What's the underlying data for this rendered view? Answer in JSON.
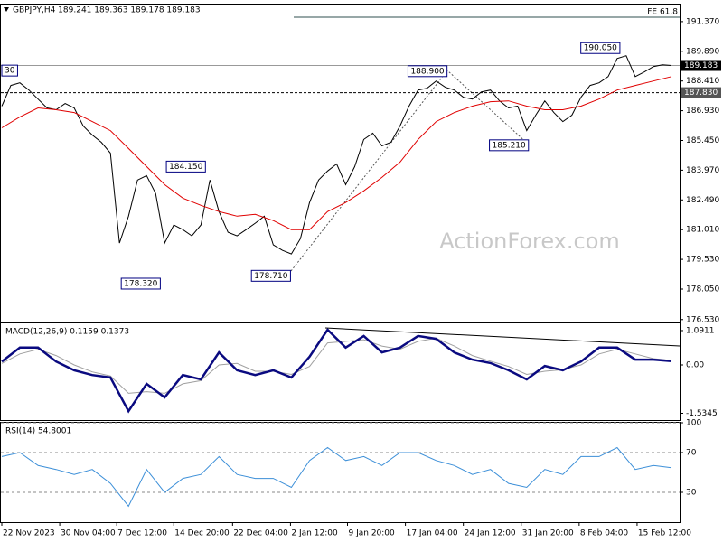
{
  "chart_data": [
    {
      "type": "line",
      "title": "GBPJPY,H4  189.241 189.363 189.178 189.183",
      "watermark": "ActionForex.com",
      "xlim": [
        -0.1,
        74.9
      ],
      "ylim": [
        176.43,
        192.22
      ],
      "yticks": [
        {
          "value": 191.37,
          "label": "191.370"
        },
        {
          "value": 189.89,
          "label": "189.890"
        },
        {
          "value": 188.41,
          "label": "188.410"
        },
        {
          "value": 186.93,
          "label": "186.930"
        },
        {
          "value": 185.45,
          "label": "185.450"
        },
        {
          "value": 183.97,
          "label": "183.970"
        },
        {
          "value": 182.49,
          "label": "182.490"
        },
        {
          "value": 181.01,
          "label": "181.010"
        },
        {
          "value": 179.53,
          "label": "179.530"
        },
        {
          "value": 178.05,
          "label": "178.050"
        },
        {
          "value": 176.53,
          "label": "176.530"
        }
      ],
      "x": [
        0,
        1,
        2,
        3,
        4,
        5,
        6,
        7,
        8,
        9,
        10,
        11,
        12,
        13,
        14,
        15,
        16,
        17,
        18,
        19,
        20,
        21,
        22,
        23,
        24,
        25,
        26,
        27,
        28,
        29,
        30,
        31,
        32,
        33,
        34,
        35,
        36,
        37,
        38,
        39,
        40,
        41,
        42,
        43,
        44,
        45,
        46,
        47,
        48,
        49,
        50,
        51,
        52,
        53,
        54,
        55,
        56,
        57,
        58,
        59,
        60,
        61,
        62,
        63,
        64,
        65,
        66,
        67,
        68,
        69,
        70,
        71,
        72,
        73,
        74
      ],
      "series": [
        {
          "color": "#000000",
          "values": [
            187.16,
            188.19,
            188.32,
            187.96,
            187.51,
            187.07,
            186.98,
            187.29,
            187.07,
            186.17,
            185.72,
            185.36,
            184.82,
            180.34,
            181.68,
            183.48,
            183.7,
            182.81,
            180.34,
            181.24,
            181.01,
            180.7,
            181.24,
            183.48,
            181.91,
            180.88,
            180.7,
            181.01,
            181.33,
            181.68,
            180.25,
            179.98,
            179.8,
            180.56,
            182.36,
            183.48,
            183.93,
            184.28,
            183.25,
            184.15,
            185.5,
            185.81,
            185.18,
            185.36,
            186.17,
            187.16,
            187.96,
            188.05,
            188.41,
            188.1,
            187.96,
            187.6,
            187.51,
            187.87,
            187.96,
            187.42,
            187.07,
            187.16,
            185.94,
            186.71,
            187.42,
            186.84,
            186.39,
            186.71,
            187.6,
            188.19,
            188.32,
            188.63,
            189.53,
            189.67,
            188.63,
            188.86,
            189.13,
            189.22,
            189.183
          ]
        },
        {
          "color": "#e00000",
          "x": [
            0,
            2,
            4,
            6,
            8,
            10,
            12,
            14,
            16,
            18,
            20,
            22,
            24,
            26,
            28,
            30,
            32,
            34,
            36,
            38,
            40,
            42,
            44,
            46,
            48,
            50,
            52,
            54,
            56,
            58,
            60,
            62,
            64,
            66,
            68,
            70,
            72,
            74
          ],
          "values": [
            186.08,
            186.62,
            187.07,
            186.98,
            186.84,
            186.39,
            185.94,
            185.05,
            184.15,
            183.25,
            182.58,
            182.22,
            181.91,
            181.68,
            181.77,
            181.46,
            181.01,
            181.01,
            181.91,
            182.36,
            182.94,
            183.61,
            184.37,
            185.5,
            186.39,
            186.84,
            187.16,
            187.38,
            187.42,
            187.16,
            186.98,
            186.98,
            187.16,
            187.51,
            187.96,
            188.19,
            188.41,
            188.63
          ]
        }
      ],
      "hlines": [
        {
          "label": "FE 61.8",
          "value": 191.59
        },
        {
          "label": "189.183",
          "value": 189.183
        },
        {
          "label": "187.830",
          "value": 187.83
        }
      ],
      "annotations": [
        {
          "label": "190.050",
          "x": 68.3,
          "value": 190.05
        },
        {
          "label": "188.900",
          "x": 49.2,
          "value": 188.9
        },
        {
          "label": "185.210",
          "x": 58.2,
          "value": 185.21
        },
        {
          "label": "184.150",
          "x": 22.5,
          "value": 184.15
        },
        {
          "label": "178.710",
          "x": 31.9,
          "value": 178.71
        },
        {
          "label": "178.320",
          "x": 13.2,
          "value": 178.32
        },
        {
          "label": "30",
          "x": 0,
          "value": 188.93
        }
      ]
    },
    {
      "type": "line",
      "title": "MACD(12,26,9) 0.1159 0.1373",
      "xlim": [
        -0.1,
        74.9
      ],
      "ylim": [
        -1.75,
        1.32
      ],
      "yticks": [
        1.0911,
        {
          "value": 0,
          "label": "0.00"
        },
        -1.5345
      ],
      "x": [
        0,
        2,
        4,
        6,
        8,
        10,
        12,
        14,
        16,
        18,
        20,
        22,
        24,
        26,
        28,
        30,
        32,
        34,
        36,
        38,
        40,
        42,
        44,
        46,
        48,
        50,
        52,
        54,
        56,
        58,
        60,
        62,
        64,
        66,
        68,
        70,
        72,
        74
      ],
      "series": [
        {
          "color": "#a0a0a0",
          "values": [
            0.05,
            0.35,
            0.5,
            0.3,
            0.0,
            -0.22,
            -0.35,
            -0.9,
            -0.85,
            -0.9,
            -0.6,
            -0.5,
            0.0,
            0.05,
            -0.2,
            -0.2,
            -0.3,
            -0.05,
            0.7,
            0.75,
            0.8,
            0.6,
            0.5,
            0.75,
            0.85,
            0.6,
            0.3,
            0.12,
            -0.05,
            -0.3,
            -0.2,
            -0.15,
            0.0,
            0.35,
            0.5,
            0.35,
            0.2,
            0.14
          ]
        },
        {
          "color": "#0a0a80",
          "values": [
            0.11,
            0.55,
            0.55,
            0.11,
            -0.17,
            -0.32,
            -0.4,
            -1.47,
            -0.6,
            -1.03,
            -0.32,
            -0.46,
            0.4,
            -0.17,
            -0.32,
            -0.17,
            -0.4,
            0.26,
            1.12,
            0.55,
            0.92,
            0.4,
            0.55,
            0.92,
            0.83,
            0.4,
            0.17,
            0.06,
            -0.17,
            -0.46,
            -0.03,
            -0.17,
            0.11,
            0.55,
            0.55,
            0.17,
            0.17,
            0.12
          ]
        }
      ]
    },
    {
      "type": "line",
      "title": "RSI(14) 54.8001",
      "xlim": [
        -0.1,
        74.9
      ],
      "ylim": [
        0,
        100
      ],
      "yticks": [
        100,
        70,
        30
      ],
      "grid": true,
      "x": [
        0,
        2,
        4,
        6,
        8,
        10,
        12,
        14,
        16,
        18,
        20,
        22,
        24,
        26,
        28,
        30,
        32,
        34,
        36,
        38,
        40,
        42,
        44,
        46,
        48,
        50,
        52,
        54,
        56,
        58,
        60,
        62,
        64,
        66,
        68,
        70,
        72,
        74
      ],
      "series": [
        {
          "color": "#3c8fd8",
          "values": [
            66,
            70,
            57,
            53,
            48,
            53,
            39,
            16,
            53,
            30,
            44,
            48,
            66,
            48,
            44,
            44,
            35,
            62,
            75,
            62,
            66,
            57,
            70,
            70,
            62,
            57,
            48,
            53,
            39,
            35,
            53,
            48,
            66,
            66,
            75,
            53,
            57,
            54.8
          ]
        }
      ],
      "xticks": [
        {
          "value": 0,
          "label": "22 Nov 2023"
        },
        {
          "value": 6.4,
          "label": "30 Nov 04:00"
        },
        {
          "value": 12.7,
          "label": "7 Dec 12:00"
        },
        {
          "value": 19,
          "label": "14 Dec 20:00"
        },
        {
          "value": 25.5,
          "label": "22 Dec 04:00"
        },
        {
          "value": 31.9,
          "label": "2 Jan 12:00"
        },
        {
          "value": 38.2,
          "label": "9 Jan 20:00"
        },
        {
          "value": 44.6,
          "label": "17 Jan 04:00"
        },
        {
          "value": 51,
          "label": "24 Jan 12:00"
        },
        {
          "value": 57.4,
          "label": "31 Jan 20:00"
        },
        {
          "value": 63.8,
          "label": "8 Feb 04:00"
        },
        {
          "value": 70.2,
          "label": "15 Feb 12:00"
        }
      ]
    }
  ]
}
